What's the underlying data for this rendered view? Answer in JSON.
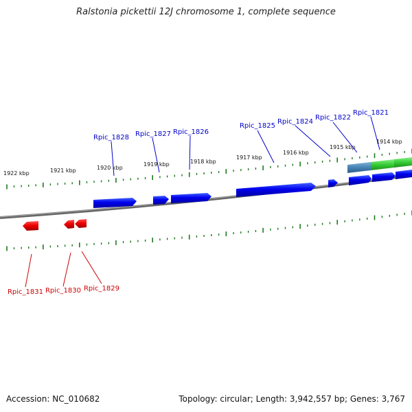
{
  "title": "Ralstonia pickettii 12J chromosome 1, complete sequence",
  "footer": {
    "accession": "Accession: NC_010682",
    "summary": "Topology: circular; Length: 3,942,557 bp; Genes: 3,767"
  },
  "colors": {
    "forward_gene": "#0000dd",
    "reverse_gene": "#ee0000",
    "ticks": "#1a7a1a",
    "backbone": "#777777",
    "feature_green": "#33cc33",
    "feature_steel": "#4682b4"
  },
  "ruler_labels": [
    "1922 kbp",
    "1921 kbp",
    "1920 kbp",
    "1919 kbp",
    "1918 kbp",
    "1917 kbp",
    "1916 kbp",
    "1915 kbp",
    "1914 kbp"
  ],
  "gene_labels_top": [
    "Rpic_1828",
    "Rpic_1827",
    "Rpic_1826",
    "Rpic_1825",
    "Rpic_1824",
    "Rpic_1822",
    "Rpic_1821"
  ],
  "gene_labels_bottom": [
    "Rpic_1831",
    "Rpic_1830",
    "Rpic_1829"
  ]
}
